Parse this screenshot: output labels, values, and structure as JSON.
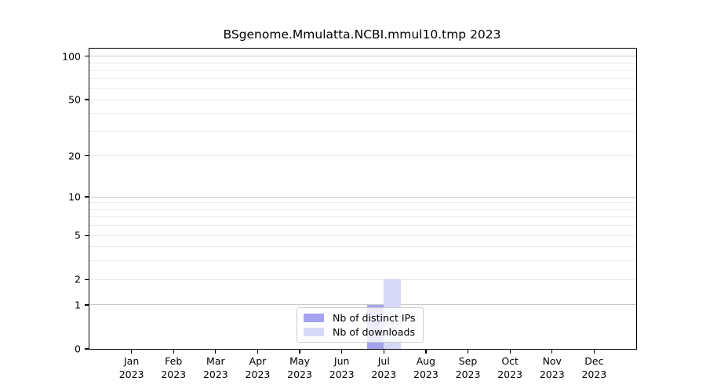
{
  "figure": {
    "title": "BSgenome.Mmulatta.NCBI.mmul10.tmp 2023"
  },
  "chart_data": {
    "type": "bar",
    "title": "BSgenome.Mmulatta.NCBI.mmul10.tmp 2023",
    "xlabel": "",
    "ylabel": "",
    "categories": [
      {
        "month": "Jan",
        "year": "2023"
      },
      {
        "month": "Feb",
        "year": "2023"
      },
      {
        "month": "Mar",
        "year": "2023"
      },
      {
        "month": "Apr",
        "year": "2023"
      },
      {
        "month": "May",
        "year": "2023"
      },
      {
        "month": "Jun",
        "year": "2023"
      },
      {
        "month": "Jul",
        "year": "2023"
      },
      {
        "month": "Aug",
        "year": "2023"
      },
      {
        "month": "Sep",
        "year": "2023"
      },
      {
        "month": "Oct",
        "year": "2023"
      },
      {
        "month": "Nov",
        "year": "2023"
      },
      {
        "month": "Dec",
        "year": "2023"
      }
    ],
    "series": [
      {
        "name": "Nb of distinct IPs",
        "color": "#a3a3f0",
        "values": [
          0,
          0,
          0,
          0,
          0,
          0,
          1,
          0,
          0,
          0,
          0,
          0
        ]
      },
      {
        "name": "Nb of downloads",
        "color": "#d8d8f8",
        "values": [
          0,
          0,
          0,
          0,
          0,
          0,
          2,
          0,
          0,
          0,
          0,
          0
        ]
      }
    ],
    "y_axis": {
      "scale": "log10(1+y)",
      "ticks": [
        100,
        50,
        20,
        10,
        5,
        2,
        1,
        0
      ],
      "major_gridlines": [
        100,
        10,
        1
      ],
      "minor_gridlines": [
        90,
        80,
        70,
        60,
        50,
        40,
        30,
        20,
        9,
        8,
        7,
        6,
        5,
        4,
        3,
        2
      ],
      "ylim": [
        0,
        113
      ]
    },
    "legend": {
      "position": "lower center"
    },
    "colors": {
      "grid_major": "#c8c8c8",
      "grid_minor": "#ebebeb",
      "axis": "#000000",
      "text": "#000000",
      "legend_border": "#cccccc",
      "background": "#ffffff"
    }
  }
}
